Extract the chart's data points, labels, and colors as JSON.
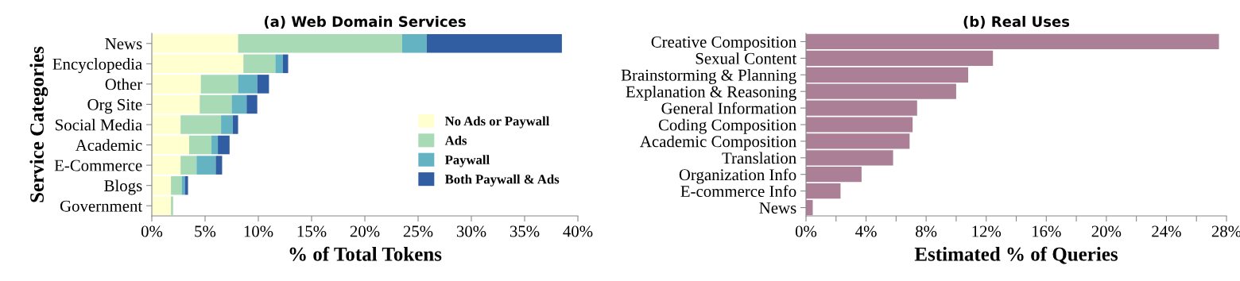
{
  "chart_data": [
    {
      "type": "bar",
      "orientation": "horizontal",
      "stacked": true,
      "title": "(a) Web Domain Services",
      "xlabel": "% of Total Tokens",
      "ylabel": "Service Categories",
      "categories": [
        "News",
        "Encyclopedia",
        "Other",
        "Org Site",
        "Social Media",
        "Academic",
        "E-Commerce",
        "Blogs",
        "Government"
      ],
      "series": [
        {
          "name": "No Ads or Paywall",
          "color": "#ffffd0",
          "values": [
            8.1,
            8.6,
            4.6,
            4.5,
            2.7,
            3.5,
            2.7,
            1.8,
            1.8
          ]
        },
        {
          "name": "Ads",
          "color": "#a9dab6",
          "values": [
            15.4,
            3.0,
            3.5,
            3.0,
            3.8,
            2.1,
            1.5,
            1.0,
            0.2
          ]
        },
        {
          "name": "Paywall",
          "color": "#63b3c2",
          "values": [
            2.3,
            0.7,
            1.8,
            1.4,
            1.1,
            0.6,
            1.8,
            0.3,
            0
          ]
        },
        {
          "name": "Both Paywall & Ads",
          "color": "#315ea3",
          "values": [
            12.7,
            0.5,
            1.1,
            1.0,
            0.5,
            1.1,
            0.6,
            0.3,
            0
          ]
        }
      ],
      "xlim": [
        0,
        40
      ],
      "xticks": [
        {
          "value": 0,
          "label": "0%"
        },
        {
          "value": 5,
          "label": "5%"
        },
        {
          "value": 10,
          "label": "10%"
        },
        {
          "value": 15,
          "label": "15%"
        },
        {
          "value": 20,
          "label": "20%"
        },
        {
          "value": 25,
          "label": "25%"
        },
        {
          "value": 30,
          "label": "30%"
        },
        {
          "value": 35,
          "label": "35%"
        },
        {
          "value": 40,
          "label": "40%"
        }
      ],
      "legend": "bottom right",
      "grid": false
    },
    {
      "type": "bar",
      "orientation": "horizontal",
      "title": "(b) Real Uses",
      "xlabel": "Estimated % of Queries",
      "categories": [
        "Creative Composition",
        "Sexual Content",
        "Brainstorming & Planning",
        "Explanation & Reasoning",
        "General Information",
        "Coding Composition",
        "Academic Composition",
        "Translation",
        "Organization Info",
        "E-commerce Info",
        "News"
      ],
      "series": [
        {
          "color": "#ab8097",
          "values": [
            27.5,
            12.45,
            10.8,
            10.0,
            7.4,
            7.1,
            6.9,
            5.8,
            3.7,
            2.3,
            0.45
          ]
        }
      ],
      "xlim": [
        0,
        28
      ],
      "xticks": [
        {
          "value": 0,
          "label": "0%"
        },
        {
          "value": 2,
          "label": null
        },
        {
          "value": 4,
          "label": "4%"
        },
        {
          "value": 6,
          "label": null
        },
        {
          "value": 8,
          "label": "8%"
        },
        {
          "value": 10,
          "label": null
        },
        {
          "value": 12,
          "label": "12%"
        },
        {
          "value": 14,
          "label": null
        },
        {
          "value": 16,
          "label": "16%"
        },
        {
          "value": 18,
          "label": null
        },
        {
          "value": 20,
          "label": "20%"
        },
        {
          "value": 22,
          "label": null
        },
        {
          "value": 24,
          "label": "24%"
        },
        {
          "value": 26,
          "label": null
        },
        {
          "value": 28,
          "label": "28%"
        }
      ],
      "grid": false
    }
  ]
}
